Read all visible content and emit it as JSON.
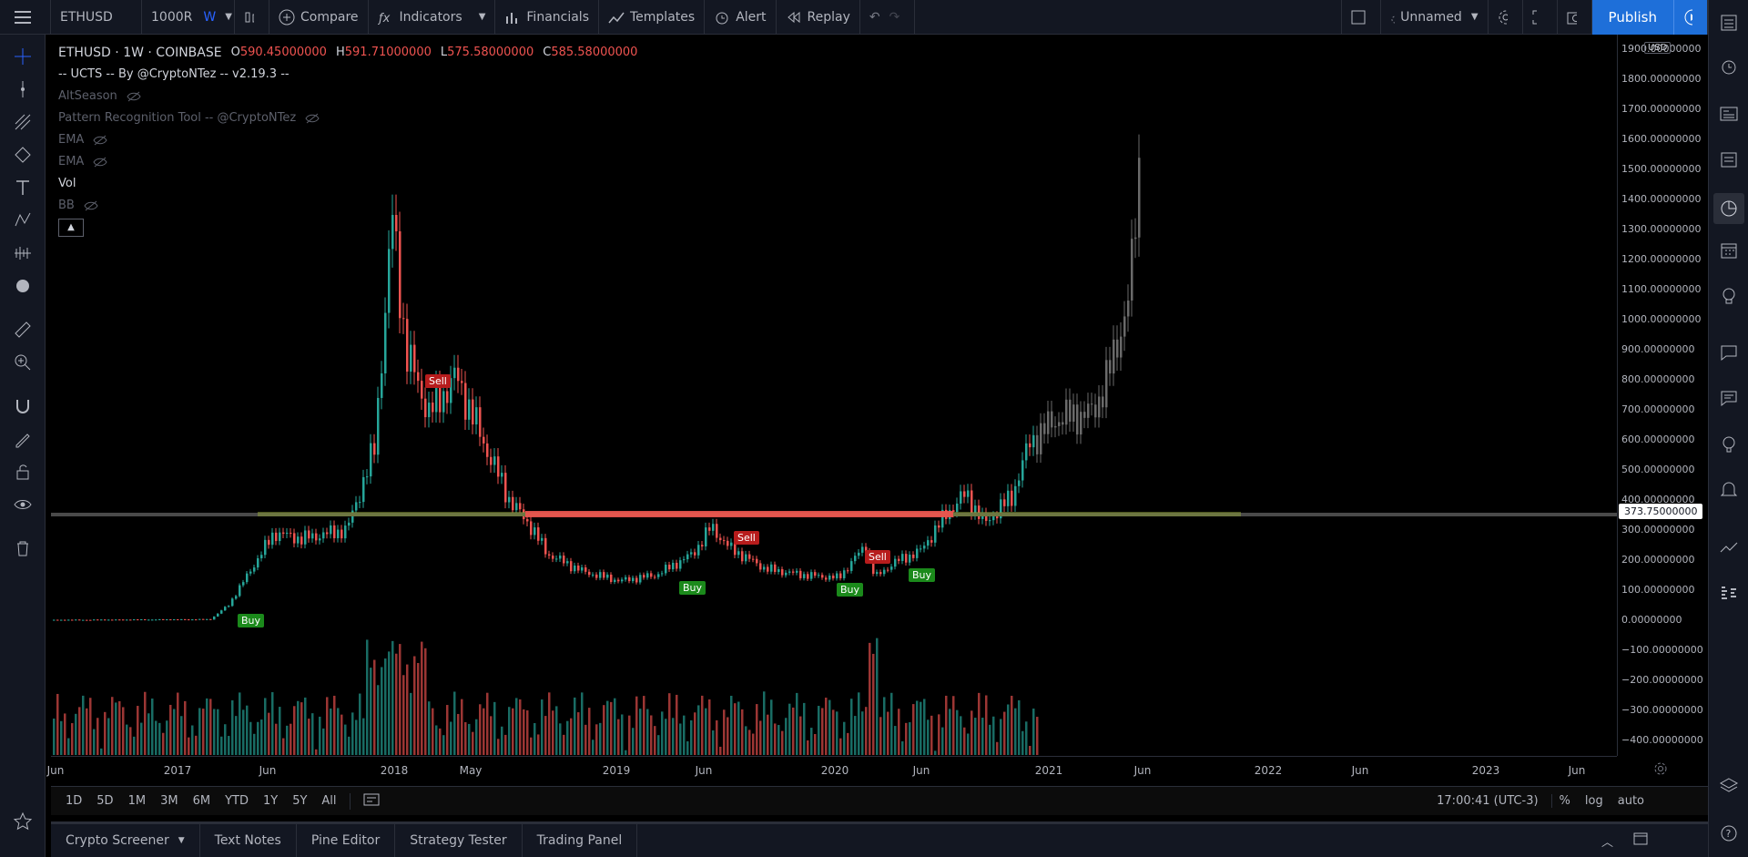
{
  "topbar": {
    "symbol": "ETHUSD",
    "interval_left": "1000R",
    "interval_right": "W",
    "compare": "Compare",
    "indicators": "Indicators",
    "financials": "Financials",
    "templates": "Templates",
    "alert": "Alert",
    "replay": "Replay",
    "layout_name": "Unnamed",
    "publish": "Publish"
  },
  "legend": {
    "title": "ETHUSD · 1W · COINBASE",
    "o_label": "O",
    "o_value": "590.45000000",
    "h_label": "H",
    "h_value": "591.71000000",
    "l_label": "L",
    "l_value": "575.58000000",
    "c_label": "C",
    "c_value": "585.58000000",
    "studies": [
      "-- UCTS -- By @CryptoNTez -- v2.19.3 --",
      "AltSeason",
      "Pattern Recognition Tool -- @CryptoNTez",
      "EMA",
      "EMA",
      "Vol",
      "BB"
    ]
  },
  "scale": {
    "currency": "USD",
    "labels": [
      "1900.00000000",
      "1800.00000000",
      "1700.00000000",
      "1600.00000000",
      "1500.00000000",
      "1400.00000000",
      "1300.00000000",
      "1200.00000000",
      "1100.00000000",
      "1000.00000000",
      "900.00000000",
      "800.00000000",
      "700.00000000",
      "600.00000000",
      "500.00000000",
      "400.00000000",
      "300.00000000",
      "200.00000000",
      "100.00000000",
      "0.00000000",
      "−100.00000000",
      "−200.00000000",
      "−300.00000000",
      "−400.00000000"
    ],
    "current_price": "373.75000000"
  },
  "time_axis": [
    "Jun",
    "2017",
    "Jun",
    "2018",
    "May",
    "2019",
    "Jun",
    "2020",
    "Jun",
    "2021",
    "Jun",
    "2022",
    "Jun",
    "2023",
    "Jun"
  ],
  "signals": [
    {
      "label": "Buy",
      "type": "buy"
    },
    {
      "label": "Sell",
      "type": "sell"
    },
    {
      "label": "Buy",
      "type": "buy"
    },
    {
      "label": "Sell",
      "type": "sell"
    },
    {
      "label": "Buy",
      "type": "buy"
    },
    {
      "label": "Sell",
      "type": "sell"
    },
    {
      "label": "Buy",
      "type": "buy"
    }
  ],
  "bottombar": {
    "ranges": [
      "1D",
      "5D",
      "1M",
      "3M",
      "6M",
      "YTD",
      "1Y",
      "5Y",
      "All"
    ],
    "clock": "17:00:41 (UTC-3)",
    "percent": "%",
    "log": "log",
    "auto": "auto"
  },
  "panels": [
    "Crypto Screener",
    "Text Notes",
    "Pine Editor",
    "Strategy Tester",
    "Trading Panel"
  ],
  "colors": {
    "up": "#26a69a",
    "down": "#ef5350",
    "buy": "#1b8a1b",
    "sell": "#b71c1c",
    "accent": "#1e6fd9"
  }
}
